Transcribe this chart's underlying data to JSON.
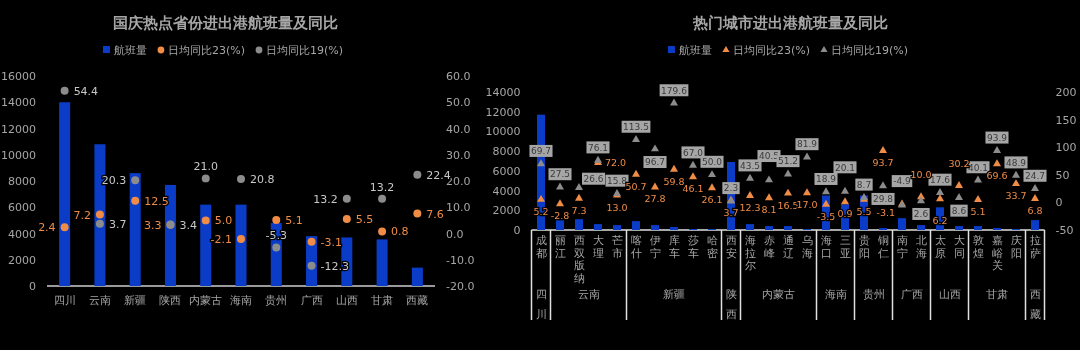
{
  "chart_data": [
    {
      "type": "bar",
      "title": "国庆热点省份进出港航班量及同比",
      "categories": [
        "四川",
        "云南",
        "新疆",
        "陕西",
        "内蒙古",
        "海南",
        "贵州",
        "广西",
        "山西",
        "甘肃",
        "西藏"
      ],
      "series": [
        {
          "name": "航班量",
          "color": "#0a3cc8",
          "values": [
            14000,
            10800,
            8600,
            7700,
            6200,
            6200,
            4800,
            3800,
            3700,
            3550,
            1400
          ]
        },
        {
          "name": "日均同比23(%)",
          "type": "scatter",
          "axis": "y2",
          "color": "#f08c46",
          "values": [
            2.4,
            7.2,
            12.5,
            3.3,
            5.0,
            -2.1,
            5.1,
            -3.1,
            5.5,
            0.8,
            7.6
          ],
          "value_labels": [
            "2.4",
            "7.2",
            "12.5",
            "3.3",
            "5.0",
            "-2.1",
            "5.1",
            "-3.1",
            "5.5",
            "0.8",
            "7.6"
          ]
        },
        {
          "name": "日均同比19(%)",
          "type": "scatter",
          "axis": "y2",
          "color": "#8c8c8c",
          "values": [
            54.4,
            3.7,
            20.3,
            3.4,
            21.0,
            20.8,
            -5.3,
            -12.3,
            13.2,
            13.2,
            22.4
          ],
          "value_labels": [
            "54.4",
            "3.7",
            "20.3",
            "3.4",
            "21.0",
            "20.8",
            "-5.3",
            "-12.3",
            "13.2",
            "13.2",
            "22.4"
          ]
        }
      ],
      "ylim": [
        0,
        16000
      ],
      "yticks": [
        0,
        2000,
        4000,
        6000,
        8000,
        10000,
        12000,
        14000,
        16000
      ],
      "y2lim": [
        -20,
        60
      ],
      "y2ticks": [
        {
          "value": -20,
          "label": "-20.0"
        },
        {
          "value": -10,
          "label": "-10.0"
        },
        {
          "value": 0,
          "label": "0.0"
        },
        {
          "value": 10,
          "label": "10.0"
        },
        {
          "value": 20,
          "label": "20.0"
        },
        {
          "value": 30,
          "label": "30.0"
        },
        {
          "value": 40,
          "label": "40.0"
        },
        {
          "value": 50,
          "label": "50.0"
        },
        {
          "value": 60,
          "label": "60.0"
        }
      ],
      "legend": "top",
      "marker": "circle"
    },
    {
      "type": "bar",
      "title": "热门城市进出港航班量及同比",
      "categories": [
        "成都",
        "丽江",
        "西双版纳",
        "大理",
        "芒市",
        "喀什",
        "伊宁",
        "库车",
        "莎车",
        "哈密",
        "西安",
        "海拉尔",
        "赤峰",
        "通辽",
        "乌海",
        "海口",
        "三亚",
        "贵阳",
        "铜仁",
        "南宁",
        "北海",
        "太原",
        "大同",
        "敦煌",
        "嘉峪关",
        "庆阳",
        "拉萨"
      ],
      "series": [
        {
          "name": "航班量",
          "color": "#0a3cc8",
          "values": [
            11700,
            1000,
            1100,
            600,
            500,
            900,
            500,
            300,
            100,
            100,
            6900,
            600,
            400,
            400,
            100,
            3500,
            2600,
            3500,
            200,
            1200,
            500,
            2300,
            400,
            400,
            200,
            100,
            1000
          ]
        },
        {
          "name": "日均同比23(%)",
          "type": "scatter",
          "axis": "y2",
          "color": "#f08c46",
          "values": [
            5.2,
            -2.8,
            7.3,
            72.0,
            13.0,
            50.7,
            27.8,
            59.8,
            46.1,
            26.1,
            3.7,
            12.3,
            8.1,
            16.5,
            17.0,
            -3.5,
            0.9,
            5.5,
            93.7,
            -3.1,
            10.0,
            6.2,
            30.2,
            5.1,
            69.6,
            33.7,
            6.8
          ],
          "value_labels": [
            "5.2",
            "-2.8",
            "7.3",
            "72.0",
            "13.0",
            "50.7",
            "27.8",
            "59.8",
            "46.1",
            "26.1",
            "3.7",
            "12.3",
            "8.1",
            "16.5",
            "17.0",
            "-3.5",
            "0.9",
            "5.5",
            "93.7",
            "-3.1",
            "10.0",
            "6.2",
            "30.2",
            "5.1",
            "69.6",
            "33.7",
            "6.8"
          ]
        },
        {
          "name": "日均同比19(%)",
          "type": "scatter",
          "axis": "y2",
          "color": "#8c8c8c",
          "values": [
            69.7,
            27.5,
            26.6,
            76.1,
            15.8,
            113.5,
            96.7,
            179.6,
            67.0,
            50.0,
            2.3,
            43.5,
            40.5,
            51.2,
            81.9,
            18.9,
            20.1,
            8.7,
            29.8,
            -4.9,
            2.6,
            17.6,
            8.6,
            40.1,
            93.9,
            48.9,
            24.7
          ],
          "value_labels": [
            "69.7",
            "27.5",
            "26.6",
            "76.1",
            "15.8",
            "113.5",
            "96.7",
            "179.6",
            "67.0",
            "50.0",
            "2.3",
            "43.5",
            "40.5",
            "51.2",
            "81.9",
            "18.9",
            "20.1",
            "8.7",
            "29.8",
            "-4.9",
            "2.6",
            "17.6",
            "8.6",
            "40.1",
            "93.9",
            "48.9",
            "24.7"
          ]
        }
      ],
      "ylim": [
        0,
        14000
      ],
      "yticks": [
        0,
        2000,
        4000,
        6000,
        8000,
        10000,
        12000,
        14000
      ],
      "y2lim": [
        -50,
        200
      ],
      "y2ticks": [
        -50,
        0,
        50,
        100,
        150,
        200
      ],
      "annotations": [
        "四川",
        "云南",
        "新疆",
        "陕西",
        "内蒙古",
        "海南",
        "贵州",
        "广西",
        "山西",
        "甘肃",
        "西藏"
      ],
      "legend": "top",
      "marker": "triangle"
    }
  ]
}
